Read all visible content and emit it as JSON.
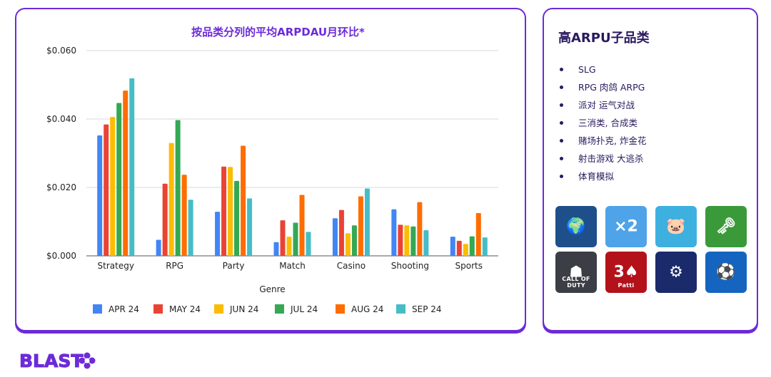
{
  "chart_data": {
    "type": "bar",
    "title": "按品类分列的平均ARPDAU月环比*",
    "xlabel": "Genre",
    "ylabel": "",
    "ylim": [
      0,
      0.06
    ],
    "yticks": [
      "$0.060",
      "$0.040",
      "$0.020",
      "$0.000"
    ],
    "ytick_values": [
      0.06,
      0.04,
      0.02,
      0.0
    ],
    "grid": true,
    "legend_position": "bottom",
    "categories": [
      "Strategy",
      "RPG",
      "Party",
      "Match",
      "Casino",
      "Shooting",
      "Sports"
    ],
    "series": [
      {
        "name": "APR 24",
        "color": "#4285f4",
        "values": [
          0.0352,
          0.0047,
          0.0129,
          0.004,
          0.011,
          0.0136,
          0.0056
        ]
      },
      {
        "name": "MAY 24",
        "color": "#ea4335",
        "values": [
          0.0384,
          0.0211,
          0.0261,
          0.0104,
          0.0134,
          0.0091,
          0.0044
        ]
      },
      {
        "name": "JUN 24",
        "color": "#fbbc04",
        "values": [
          0.0406,
          0.033,
          0.026,
          0.0056,
          0.0066,
          0.0089,
          0.0035
        ]
      },
      {
        "name": "JUL 24",
        "color": "#34a853",
        "values": [
          0.0447,
          0.0397,
          0.0219,
          0.0097,
          0.0089,
          0.0086,
          0.0057
        ]
      },
      {
        "name": "AUG 24",
        "color": "#ff6d01",
        "values": [
          0.0483,
          0.0237,
          0.0322,
          0.0178,
          0.0174,
          0.0157,
          0.0125
        ]
      },
      {
        "name": "SEP 24",
        "color": "#46bdc6",
        "values": [
          0.0519,
          0.0164,
          0.0168,
          0.007,
          0.0197,
          0.0075,
          0.0054
        ]
      }
    ]
  },
  "side": {
    "title": "高ARPU子品类",
    "items": [
      "SLG",
      "RPG 肉鸽 ARPG",
      "派对 运气对战",
      "三消类, 合成类",
      "赌场扑克, 炸金花",
      "射击游戏 大逃杀",
      "体育模拟"
    ],
    "icons": [
      {
        "name": "globe-strategy-app-icon",
        "bg": "#1f4f8a",
        "glyph": "🌍",
        "tag": ""
      },
      {
        "name": "runner-x2-app-icon",
        "bg": "#4fa3e8",
        "glyph": "×2",
        "tag": ""
      },
      {
        "name": "pig-coin-app-icon",
        "bg": "#3db0e0",
        "glyph": "🐷",
        "tag": ""
      },
      {
        "name": "pin-puzzle-app-icon",
        "bg": "#3a9a3a",
        "glyph": "🗝",
        "tag": ""
      },
      {
        "name": "call-of-duty-app-icon",
        "bg": "#3b3f45",
        "glyph": "☗",
        "tag": "CALL OF DUTY"
      },
      {
        "name": "teen-patti-app-icon",
        "bg": "#b3121b",
        "glyph": "3♠",
        "tag": "Patti"
      },
      {
        "name": "mech-robot-app-icon",
        "bg": "#1a2a6b",
        "glyph": "⚙",
        "tag": ""
      },
      {
        "name": "efootball-app-icon",
        "bg": "#1565c0",
        "glyph": "⚽",
        "tag": ""
      }
    ]
  },
  "brand": {
    "logo_text": "BLAST",
    "color": "#6c2bd9"
  }
}
